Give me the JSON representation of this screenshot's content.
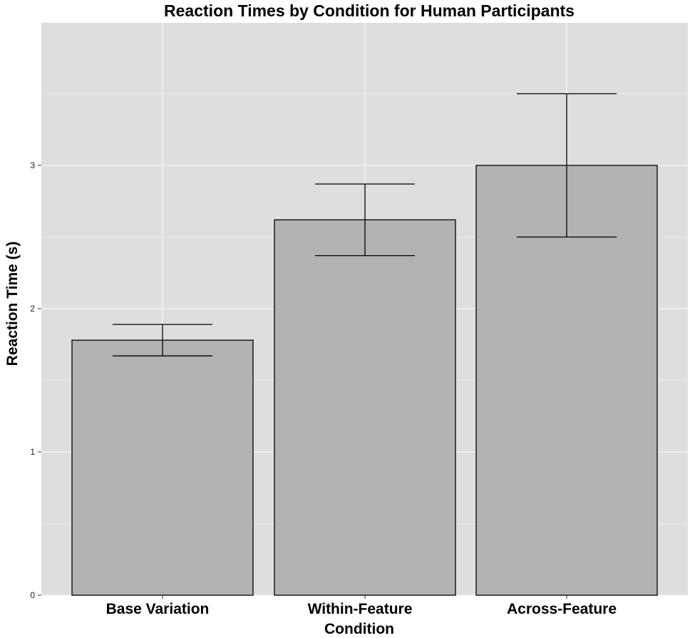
{
  "chart_data": {
    "type": "bar",
    "title": "Reaction Times by Condition for Human Participants",
    "xlabel": "Condition",
    "ylabel": "Reaction Time (s)",
    "categories": [
      "Base Variation",
      "Within-Feature",
      "Across-Feature"
    ],
    "values": [
      1.78,
      2.62,
      3.0
    ],
    "error_bars": [
      {
        "lower": 1.67,
        "upper": 1.89
      },
      {
        "lower": 2.37,
        "upper": 2.87
      },
      {
        "lower": 2.5,
        "upper": 3.5
      }
    ],
    "yticks": [
      0,
      1,
      2,
      3
    ],
    "ytick_labels": [
      "0",
      "1",
      "2",
      "3"
    ],
    "ylim": [
      0,
      4
    ],
    "grid": true,
    "legend": "none",
    "colors": {
      "panel_background": "#dedede",
      "gridline": "#f2f2f2",
      "bar_fill": "#b2b2b2",
      "bar_stroke": "#000000",
      "errorbar": "#000000"
    }
  }
}
